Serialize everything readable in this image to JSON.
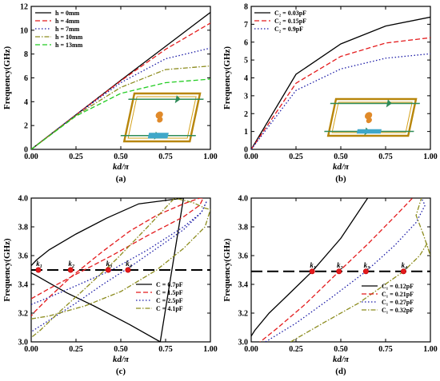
{
  "chart_data": [
    {
      "id": "a",
      "type": "line",
      "caption": "(a)",
      "xlabel": "kd/π",
      "ylabel": "Frequency(GHz)",
      "xlim": [
        0,
        1
      ],
      "ylim": [
        0,
        12
      ],
      "xticks": [
        "0.00",
        "0.25",
        "0.50",
        "0.75",
        "1.00"
      ],
      "yticks": [
        "0",
        "2",
        "4",
        "6",
        "8",
        "10",
        "12"
      ],
      "legend_position": "top-left",
      "inset": "waveguide-structure-illustration",
      "series": [
        {
          "name": "h = 0mm",
          "color": "#000000",
          "dash": "solid",
          "x": [
            0,
            0.25,
            0.5,
            0.75,
            1.0
          ],
          "y": [
            0,
            2.9,
            5.8,
            8.65,
            11.5
          ]
        },
        {
          "name": "h = 4mm",
          "color": "#e41a1c",
          "dash": "dashed",
          "x": [
            0,
            0.25,
            0.5,
            0.75,
            1.0
          ],
          "y": [
            0,
            2.9,
            5.75,
            8.4,
            10.6
          ]
        },
        {
          "name": "h = 7mm",
          "color": "#1a1aa6",
          "dash": "dotted",
          "x": [
            0,
            0.25,
            0.5,
            0.75,
            1.0
          ],
          "y": [
            0,
            2.9,
            5.6,
            7.6,
            8.5
          ]
        },
        {
          "name": "h = 10mm",
          "color": "#8c8c1e",
          "dash": "dashdot",
          "x": [
            0,
            0.25,
            0.5,
            0.75,
            1.0
          ],
          "y": [
            0,
            2.85,
            5.2,
            6.7,
            7.0
          ]
        },
        {
          "name": "h = 13mm",
          "color": "#22cc22",
          "dash": "dashed",
          "x": [
            0,
            0.25,
            0.5,
            0.75,
            1.0
          ],
          "y": [
            0,
            2.8,
            4.7,
            5.6,
            5.9
          ]
        }
      ]
    },
    {
      "id": "b",
      "type": "line",
      "caption": "(b)",
      "xlabel": "kd/π",
      "ylabel": "Frequency(GHz)",
      "xlim": [
        0,
        1
      ],
      "ylim": [
        0,
        8
      ],
      "xticks": [
        "0.00",
        "0.25",
        "0.50",
        "0.75",
        "1.00"
      ],
      "yticks": [
        "0",
        "1",
        "2",
        "3",
        "4",
        "5",
        "6",
        "7",
        "8"
      ],
      "legend_position": "top-left",
      "inset": "waveguide-structure-illustration",
      "series": [
        {
          "name": "C₂ = 0.03pF",
          "color": "#000000",
          "dash": "solid",
          "x": [
            0,
            0.25,
            0.5,
            0.75,
            1.0
          ],
          "y": [
            0,
            4.2,
            5.9,
            6.9,
            7.4
          ]
        },
        {
          "name": "C₂ = 0.15pF",
          "color": "#e41a1c",
          "dash": "dashed",
          "x": [
            0,
            0.25,
            0.5,
            0.75,
            1.0
          ],
          "y": [
            0,
            3.7,
            5.2,
            5.95,
            6.25
          ]
        },
        {
          "name": "C₂ = 0.9pF",
          "color": "#1a1aa6",
          "dash": "dotted",
          "x": [
            0,
            0.25,
            0.5,
            0.75,
            1.0
          ],
          "y": [
            0,
            3.3,
            4.5,
            5.1,
            5.35
          ]
        }
      ]
    },
    {
      "id": "c",
      "type": "line",
      "caption": "(c)",
      "xlabel": "kd/π",
      "ylabel": "Frequency(GHz)",
      "xlim": [
        0,
        1
      ],
      "ylim": [
        3.0,
        4.0
      ],
      "xticks": [
        "0.00",
        "0.25",
        "0.50",
        "0.75",
        "1.00"
      ],
      "yticks": [
        "3.0",
        "3.2",
        "3.4",
        "3.6",
        "3.8",
        "4.0"
      ],
      "legend_position": "bottom-right",
      "reference_line": {
        "y": 3.5,
        "color": "#000000",
        "dash": "longdash"
      },
      "points": [
        {
          "label": "k1",
          "x": 0.04,
          "y": 3.5
        },
        {
          "label": "k2",
          "x": 0.22,
          "y": 3.5
        },
        {
          "label": "k3",
          "x": 0.43,
          "y": 3.5
        },
        {
          "label": "k4",
          "x": 0.54,
          "y": 3.5
        }
      ],
      "series": [
        {
          "name": "C = 0.7pF",
          "color": "#000000",
          "dash": "solid",
          "x": [
            0.0,
            0.03,
            0.1,
            0.25,
            0.42,
            0.6,
            0.85,
            0.72,
            0.55,
            0.35,
            0.2,
            0.1,
            0.03,
            0.0
          ],
          "y": [
            3.53,
            3.57,
            3.64,
            3.75,
            3.86,
            3.96,
            4.0,
            3.0,
            3.12,
            3.25,
            3.34,
            3.41,
            3.46,
            3.48
          ]
        },
        {
          "name": "C = 1.5pF",
          "color": "#e41a1c",
          "dash": "dashed",
          "x": [
            0.0,
            0.1,
            0.25,
            0.45,
            0.65,
            0.85,
            0.94,
            0.96,
            0.94,
            0.85,
            0.7,
            0.55,
            0.4,
            0.22,
            0.1,
            0.02,
            0.0
          ],
          "y": [
            3.3,
            3.37,
            3.47,
            3.6,
            3.74,
            3.87,
            3.95,
            4.0,
            4.0,
            3.96,
            3.88,
            3.77,
            3.63,
            3.45,
            3.31,
            3.21,
            3.18
          ]
        },
        {
          "name": "C = 2.5pF",
          "color": "#1a1aa6",
          "dash": "dotted",
          "x": [
            0.0,
            0.1,
            0.25,
            0.45,
            0.65,
            0.85,
            0.95,
            0.98,
            0.95,
            0.85,
            0.7,
            0.55,
            0.4,
            0.25,
            0.1,
            0.0
          ],
          "y": [
            3.26,
            3.31,
            3.39,
            3.5,
            3.64,
            3.8,
            3.9,
            3.98,
            3.9,
            3.78,
            3.65,
            3.52,
            3.4,
            3.27,
            3.15,
            3.07
          ]
        },
        {
          "name": "C = 4.1pF",
          "color": "#8c8c1e",
          "dash": "dashdot",
          "x": [
            0.0,
            0.1,
            0.3,
            0.5,
            0.7,
            0.85,
            0.97,
            1.0,
            0.97,
            0.9,
            0.8,
            0.65,
            0.48,
            0.3,
            0.15,
            0.05,
            0.0
          ],
          "y": [
            3.16,
            3.18,
            3.25,
            3.35,
            3.5,
            3.65,
            3.8,
            3.92,
            3.93,
            3.97,
            4.0,
            3.8,
            3.58,
            3.37,
            3.2,
            3.08,
            3.03
          ]
        }
      ]
    },
    {
      "id": "d",
      "type": "line",
      "caption": "(d)",
      "xlabel": "kd/π",
      "ylabel": "Frequency(GHz)",
      "xlim": [
        0,
        1
      ],
      "ylim": [
        3.0,
        4.0
      ],
      "xticks": [
        "0.00",
        "0.25",
        "0.50",
        "0.75",
        "1.00"
      ],
      "yticks": [
        "3.0",
        "3.2",
        "3.4",
        "3.6",
        "3.8",
        "4.0"
      ],
      "legend_position": "bottom-right",
      "reference_line": {
        "y": 3.49,
        "color": "#000000",
        "dash": "longdash"
      },
      "points": [
        {
          "label": "k1",
          "x": 0.34,
          "y": 3.49
        },
        {
          "label": "k2",
          "x": 0.49,
          "y": 3.49
        },
        {
          "label": "k3",
          "x": 0.64,
          "y": 3.49
        },
        {
          "label": "k4",
          "x": 0.85,
          "y": 3.49
        }
      ],
      "series": [
        {
          "name": "C₁ = 0.12pF",
          "color": "#000000",
          "dash": "solid",
          "x": [
            0.0,
            0.02,
            0.1,
            0.2,
            0.34,
            0.5,
            0.65
          ],
          "y": [
            3.04,
            3.08,
            3.2,
            3.32,
            3.49,
            3.72,
            4.0
          ]
        },
        {
          "name": "C₁ = 0.21pF",
          "color": "#e41a1c",
          "dash": "dashed",
          "x": [
            0.0,
            0.15,
            0.3,
            0.49,
            0.65,
            0.8,
            0.9
          ],
          "y": [
            2.95,
            3.1,
            3.26,
            3.49,
            3.68,
            3.87,
            4.0
          ]
        },
        {
          "name": "C₁ = 0.27pF",
          "color": "#1a1aa6",
          "dash": "dotted",
          "x": [
            0.08,
            0.25,
            0.45,
            0.64,
            0.8,
            0.92,
            0.97,
            0.95
          ],
          "y": [
            3.0,
            3.13,
            3.31,
            3.49,
            3.67,
            3.83,
            3.95,
            4.0
          ]
        },
        {
          "name": "C₁ = 0.32pF",
          "color": "#8c8c1e",
          "dash": "dashdot",
          "x": [
            0.22,
            0.4,
            0.6,
            0.85,
            0.94,
            0.98,
            1.0,
            0.96,
            0.92,
            0.95
          ],
          "y": [
            3.0,
            3.13,
            3.27,
            3.49,
            3.6,
            3.68,
            3.6,
            3.75,
            3.88,
            4.0
          ]
        }
      ]
    }
  ]
}
